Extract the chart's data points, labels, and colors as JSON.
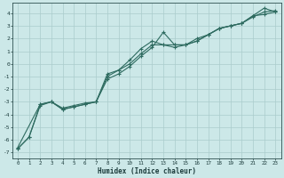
{
  "xlabel": "Humidex (Indice chaleur)",
  "background_color": "#cce8e8",
  "grid_color": "#aacccc",
  "line_color": "#2e6b60",
  "xlim": [
    -0.5,
    23.5
  ],
  "ylim": [
    -7.5,
    4.8
  ],
  "xticks": [
    0,
    1,
    2,
    3,
    4,
    5,
    6,
    7,
    8,
    9,
    10,
    11,
    12,
    13,
    14,
    15,
    16,
    17,
    18,
    19,
    20,
    21,
    22,
    23
  ],
  "yticks": [
    -7,
    -6,
    -5,
    -4,
    -3,
    -2,
    -1,
    0,
    1,
    2,
    3,
    4
  ],
  "line1_x": [
    0,
    2,
    3,
    4,
    5,
    6,
    7,
    8,
    9,
    10,
    11,
    12,
    13,
    14,
    15,
    16,
    17,
    18,
    19,
    20,
    21,
    22,
    23
  ],
  "line1_y": [
    -6.6,
    -3.2,
    -3.0,
    -3.5,
    -3.3,
    -3.1,
    -3.0,
    -0.8,
    -0.5,
    0.0,
    0.8,
    1.5,
    1.5,
    1.3,
    1.5,
    2.0,
    2.3,
    2.8,
    3.0,
    3.2,
    3.7,
    4.1,
    4.2
  ],
  "line2_x": [
    0,
    1,
    2,
    3,
    4,
    5,
    6,
    7,
    8,
    9,
    10,
    11,
    12,
    13,
    14,
    15,
    16,
    17,
    18,
    19,
    20,
    21,
    22,
    23
  ],
  "line2_y": [
    -6.7,
    -5.8,
    -3.3,
    -3.0,
    -3.6,
    -3.4,
    -3.2,
    -3.0,
    -1.2,
    -0.8,
    -0.2,
    0.6,
    1.3,
    2.5,
    1.5,
    1.5,
    1.8,
    2.3,
    2.8,
    3.0,
    3.2,
    3.8,
    3.9,
    4.1
  ],
  "line3_x": [
    0,
    1,
    2,
    3,
    4,
    5,
    6,
    7,
    8,
    9,
    10,
    11,
    12,
    13,
    14,
    15,
    16,
    17,
    18,
    19,
    20,
    21,
    22,
    23
  ],
  "line3_y": [
    -6.7,
    -5.8,
    -3.2,
    -3.0,
    -3.6,
    -3.4,
    -3.2,
    -3.0,
    -1.0,
    -0.5,
    0.3,
    1.2,
    1.8,
    1.5,
    1.5,
    1.5,
    1.8,
    2.3,
    2.8,
    3.0,
    3.2,
    3.8,
    4.4,
    4.1
  ]
}
